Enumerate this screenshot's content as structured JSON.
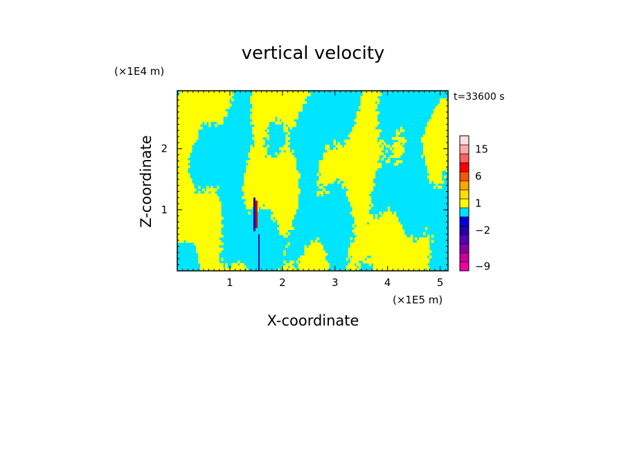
{
  "chart_data": {
    "type": "heatmap",
    "title": "vertical velocity",
    "xlabel": "X-coordinate",
    "ylabel": "Z-coordinate",
    "x_unit": "(×1E5 m)",
    "y_unit": "(×1E4 m)",
    "time_label": "t=33600 s",
    "xlim": [
      0,
      5.15
    ],
    "ylim": [
      0,
      2.95
    ],
    "x_ticks": [
      1,
      2,
      3,
      4,
      5
    ],
    "y_ticks": [
      1,
      2
    ],
    "colorbar": {
      "levels": [
        {
          "color": "#ee00aa",
          "label": "-9"
        },
        {
          "color": "#cc0099",
          "label": ""
        },
        {
          "color": "#8800aa",
          "label": ""
        },
        {
          "color": "#5500bb",
          "label": ""
        },
        {
          "color": "#2200aa",
          "label": "-2"
        },
        {
          "color": "#0000dd",
          "label": ""
        },
        {
          "color": "#00e5ff",
          "label": ""
        },
        {
          "color": "#ffff00",
          "label": "1"
        },
        {
          "color": "#ffe000",
          "label": ""
        },
        {
          "color": "#ffa500",
          "label": ""
        },
        {
          "color": "#ff5500",
          "label": "6"
        },
        {
          "color": "#ff0000",
          "label": ""
        },
        {
          "color": "#ff6060",
          "label": ""
        },
        {
          "color": "#ffa8a8",
          "label": "15"
        },
        {
          "color": "#ffdede",
          "label": ""
        }
      ]
    },
    "field_colors": {
      "negative": "#00e5ff",
      "positive": "#ffff00",
      "strong_pos": "#cc0000",
      "strong_neg": "#2200aa"
    }
  }
}
